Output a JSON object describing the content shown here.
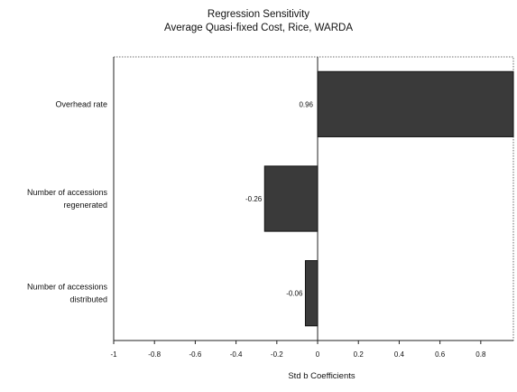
{
  "chart_data": {
    "type": "bar",
    "orientation": "horizontal",
    "title": "Regression Sensitivity",
    "subtitle": "Average Quasi-fixed Cost, Rice, WARDA",
    "xlabel": "Std b Coefficients",
    "ylabel": "",
    "categories": [
      [
        "Overhead rate"
      ],
      [
        "Number of accessions",
        "regenerated"
      ],
      [
        "Number of accessions",
        "distributed"
      ]
    ],
    "values": [
      0.96,
      -0.26,
      -0.06
    ],
    "data_labels": [
      "0.96",
      "-0.26",
      "-0.06"
    ],
    "xlim": [
      -1,
      0.96
    ],
    "xticks": [
      -1,
      -0.8,
      -0.6,
      -0.4,
      -0.2,
      0,
      0.2,
      0.4,
      0.6,
      0.8
    ],
    "xtick_labels": [
      "-1",
      "-0.8",
      "-0.6",
      "-0.4",
      "-0.2",
      "0",
      "0.2",
      "0.4",
      "0.6",
      "0.8"
    ],
    "grid": false,
    "legend": "none",
    "bar_color": "#3a3a3a"
  }
}
